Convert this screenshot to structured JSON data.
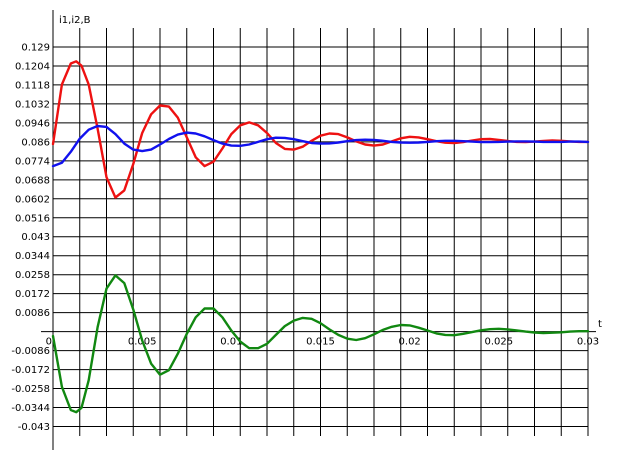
{
  "chart_data": {
    "type": "line",
    "ylabel": "i1,i2,B",
    "xlabel": "t",
    "grid": true,
    "xlim": [
      0,
      0.03
    ],
    "ylim": [
      -0.0473,
      0.1376
    ],
    "x_ticks": [
      "0",
      "0.005",
      "0.01",
      "0.015",
      "0.02",
      "0.025",
      "0.03"
    ],
    "x_tick_values": [
      0,
      0.005,
      0.01,
      0.015,
      0.02,
      0.025,
      0.03
    ],
    "x_minor_step": 0.0015,
    "y_ticks": [
      "0.129",
      "0.1204",
      "0.1118",
      "0.1032",
      "0.0946",
      "0.086",
      "0.0774",
      "0.0688",
      "0.0602",
      "0.0516",
      "0.043",
      "0.0344",
      "0.0258",
      "0.0172",
      "0.0086",
      "-0.0086",
      "-0.0172",
      "-0.0258",
      "-0.0344",
      "-0.043"
    ],
    "y_tick_values": [
      0.129,
      0.1204,
      0.1118,
      0.1032,
      0.0946,
      0.086,
      0.0774,
      0.0688,
      0.0602,
      0.0516,
      0.043,
      0.0344,
      0.0258,
      0.0172,
      0.0086,
      -0.0086,
      -0.0172,
      -0.0258,
      -0.0344,
      -0.043
    ],
    "series": [
      {
        "color": "#ee1111",
        "x": [
          0,
          0.0005,
          0.001,
          0.0013,
          0.0016,
          0.002,
          0.0025,
          0.003,
          0.0035,
          0.004,
          0.0045,
          0.005,
          0.0055,
          0.006,
          0.0065,
          0.007,
          0.0075,
          0.008,
          0.0085,
          0.009,
          0.0095,
          0.01,
          0.0105,
          0.011,
          0.0115,
          0.012,
          0.0125,
          0.013,
          0.0135,
          0.014,
          0.0145,
          0.015,
          0.0155,
          0.016,
          0.0165,
          0.017,
          0.0175,
          0.018,
          0.0185,
          0.019,
          0.0195,
          0.02,
          0.0205,
          0.021,
          0.0215,
          0.022,
          0.0225,
          0.023,
          0.0235,
          0.024,
          0.0245,
          0.025,
          0.0255,
          0.026,
          0.0265,
          0.027,
          0.0275,
          0.028,
          0.0285,
          0.029,
          0.0295,
          0.03
        ],
        "y": [
          0.085,
          0.112,
          0.1215,
          0.1225,
          0.1205,
          0.112,
          0.092,
          0.07,
          0.0608,
          0.064,
          0.076,
          0.09,
          0.0985,
          0.1025,
          0.102,
          0.097,
          0.088,
          0.079,
          0.075,
          0.077,
          0.083,
          0.0895,
          0.0935,
          0.0948,
          0.0935,
          0.09,
          0.0855,
          0.0828,
          0.0825,
          0.0838,
          0.0865,
          0.0888,
          0.0898,
          0.0895,
          0.088,
          0.0862,
          0.0848,
          0.0843,
          0.0848,
          0.0862,
          0.0876,
          0.0883,
          0.088,
          0.0872,
          0.0863,
          0.0856,
          0.0855,
          0.0859,
          0.0866,
          0.0872,
          0.0873,
          0.0869,
          0.0864,
          0.086,
          0.0859,
          0.0861,
          0.0864,
          0.0866,
          0.0865,
          0.0862,
          0.086,
          0.086
        ]
      },
      {
        "color": "#1111ee",
        "x": [
          0,
          0.0005,
          0.001,
          0.0015,
          0.002,
          0.0025,
          0.003,
          0.0035,
          0.004,
          0.0045,
          0.005,
          0.0055,
          0.006,
          0.0065,
          0.007,
          0.0075,
          0.008,
          0.0085,
          0.009,
          0.0095,
          0.01,
          0.0105,
          0.011,
          0.0115,
          0.012,
          0.0125,
          0.013,
          0.0135,
          0.014,
          0.0145,
          0.015,
          0.0155,
          0.016,
          0.0165,
          0.017,
          0.0175,
          0.018,
          0.0185,
          0.019,
          0.0195,
          0.02,
          0.0205,
          0.021,
          0.0215,
          0.022,
          0.0225,
          0.023,
          0.0235,
          0.024,
          0.0245,
          0.025,
          0.0255,
          0.026,
          0.0265,
          0.027,
          0.0275,
          0.028,
          0.0285,
          0.029,
          0.0295,
          0.03
        ],
        "y": [
          0.075,
          0.0765,
          0.0815,
          0.0875,
          0.0915,
          0.0932,
          0.0928,
          0.0895,
          0.0852,
          0.0825,
          0.0818,
          0.0825,
          0.0848,
          0.0873,
          0.0893,
          0.0902,
          0.0898,
          0.0885,
          0.0868,
          0.0852,
          0.0843,
          0.0842,
          0.0848,
          0.086,
          0.0872,
          0.0879,
          0.0878,
          0.0872,
          0.0863,
          0.0855,
          0.0852,
          0.0853,
          0.0857,
          0.0863,
          0.0868,
          0.087,
          0.0869,
          0.0865,
          0.086,
          0.0857,
          0.0856,
          0.0857,
          0.086,
          0.0863,
          0.0865,
          0.0865,
          0.0863,
          0.0861,
          0.0859,
          0.0859,
          0.086,
          0.0861,
          0.0862,
          0.0862,
          0.0861,
          0.086,
          0.086,
          0.086,
          0.0861,
          0.0861,
          0.086
        ]
      },
      {
        "color": "#118811",
        "x": [
          0,
          0.0005,
          0.001,
          0.0013,
          0.0016,
          0.002,
          0.0025,
          0.003,
          0.0035,
          0.004,
          0.0045,
          0.005,
          0.0055,
          0.006,
          0.0065,
          0.007,
          0.0075,
          0.008,
          0.0085,
          0.009,
          0.0095,
          0.01,
          0.0105,
          0.011,
          0.0115,
          0.012,
          0.0125,
          0.013,
          0.0135,
          0.014,
          0.0145,
          0.015,
          0.0155,
          0.016,
          0.0165,
          0.017,
          0.0175,
          0.018,
          0.0185,
          0.019,
          0.0195,
          0.02,
          0.0205,
          0.021,
          0.0215,
          0.022,
          0.0225,
          0.023,
          0.0235,
          0.024,
          0.0245,
          0.025,
          0.0255,
          0.026,
          0.0265,
          0.027,
          0.0275,
          0.028,
          0.0285,
          0.029,
          0.0295,
          0.03
        ],
        "y": [
          -0.002,
          -0.025,
          -0.0355,
          -0.0365,
          -0.0345,
          -0.022,
          0.002,
          0.0195,
          0.0255,
          0.022,
          0.01,
          -0.004,
          -0.0145,
          -0.0195,
          -0.0175,
          -0.01,
          -0.001,
          0.0065,
          0.0105,
          0.0105,
          0.0065,
          0.0005,
          -0.0045,
          -0.0075,
          -0.0075,
          -0.0055,
          -0.0015,
          0.0025,
          0.005,
          0.0062,
          0.0058,
          0.0038,
          0.001,
          -0.0015,
          -0.0032,
          -0.0038,
          -0.003,
          -0.0012,
          0.0008,
          0.0022,
          0.003,
          0.0028,
          0.0018,
          0.0005,
          -0.0008,
          -0.0015,
          -0.0016,
          -0.001,
          -0.0002,
          0.0006,
          0.0011,
          0.0013,
          0.001,
          0.0005,
          0,
          -0.0004,
          -0.0006,
          -0.0005,
          -0.0003,
          0,
          0.0002,
          0.0002
        ]
      }
    ]
  }
}
